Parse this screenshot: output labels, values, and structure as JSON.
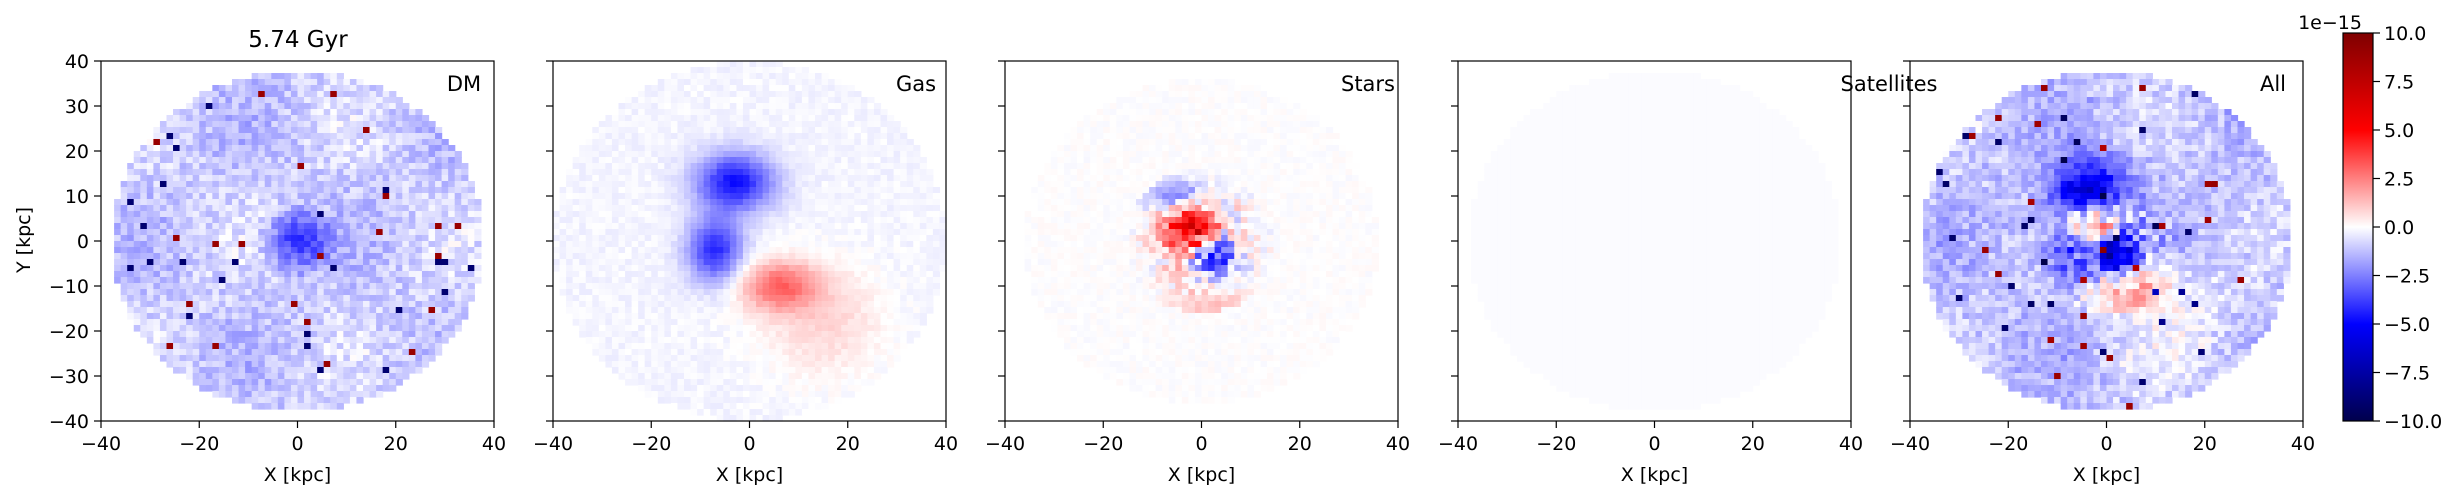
{
  "figure": {
    "title": "5.74 Gyr"
  },
  "chart_data": {
    "type": "heatmap",
    "xlabel": "X [kpc]",
    "ylabel": "Y [kpc]",
    "xlim": [
      -40,
      40
    ],
    "ylim": [
      -40,
      40
    ],
    "xticks": [
      -40,
      -20,
      0,
      20,
      40
    ],
    "yticks": [
      -40,
      -30,
      -20,
      -10,
      0,
      10,
      20,
      30,
      40
    ],
    "xtick_labels": [
      "−40",
      "−20",
      "0",
      "20",
      "40"
    ],
    "ytick_labels": [
      "−40",
      "−30",
      "−20",
      "−10",
      "0",
      "10",
      "20",
      "30",
      "40"
    ],
    "grid": false,
    "colormap": "seismic",
    "colormap_colors": [
      "#00004c",
      "#0000ff",
      "#ffffff",
      "#ff0000",
      "#7f0000"
    ],
    "colorbar": {
      "range": [
        -10.0,
        10.0
      ],
      "ticks": [
        -10.0,
        -7.5,
        -5.0,
        -2.5,
        0.0,
        2.5,
        5.0,
        7.5,
        10.0
      ],
      "tick_labels": [
        "−10.0",
        "−7.5",
        "−5.0",
        "−2.5",
        "0.0",
        "2.5",
        "5.0",
        "7.5",
        "10.0"
      ],
      "offset_label": "1e−15"
    },
    "panels": [
      {
        "label": "DM"
      },
      {
        "label": "Gas"
      },
      {
        "label": "Stars"
      },
      {
        "label": "Satellites"
      },
      {
        "label": "All"
      }
    ]
  }
}
